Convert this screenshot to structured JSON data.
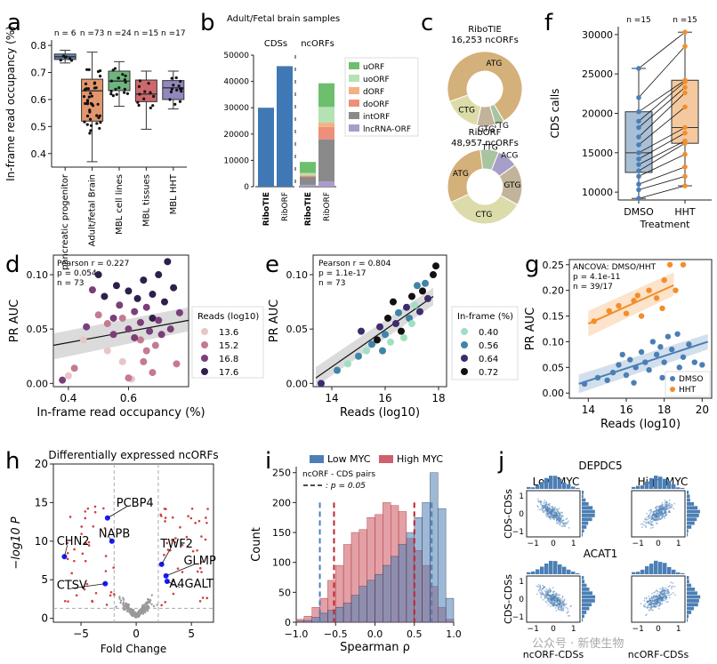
{
  "panel_labels": {
    "a": "a",
    "b": "b",
    "c": "c",
    "f": "f",
    "d": "d",
    "e": "e",
    "g": "g",
    "h": "h",
    "i": "i",
    "j": "j"
  },
  "watermark": "公众号 · 新使生物",
  "chart_data": [
    {
      "id": "a",
      "type": "box",
      "ylabel": "In-frame read occupancy (%)",
      "ylim": [
        0.35,
        0.82
      ],
      "yticks": [
        "0.4",
        "0.5",
        "0.6",
        "0.7",
        "0.8"
      ],
      "categories": [
        "pancreatic progenitor",
        "Adult/fetal Brain",
        "MBL cell lines",
        "MBL tissues",
        "MBL HHT"
      ],
      "n_labels": [
        "n = 6",
        "n =73",
        "n =24",
        "n =15",
        "n =17"
      ],
      "colors": [
        "#4c72b0",
        "#dd8452",
        "#55a868",
        "#c44e52",
        "#8172b3"
      ],
      "boxes": [
        {
          "min": 0.735,
          "q1": 0.748,
          "median": 0.758,
          "q3": 0.768,
          "max": 0.782
        },
        {
          "min": 0.37,
          "q1": 0.52,
          "median": 0.632,
          "q3": 0.675,
          "max": 0.775
        },
        {
          "min": 0.575,
          "q1": 0.633,
          "median": 0.668,
          "q3": 0.705,
          "max": 0.74
        },
        {
          "min": 0.49,
          "q1": 0.592,
          "median": 0.62,
          "q3": 0.672,
          "max": 0.705
        },
        {
          "min": 0.565,
          "q1": 0.6,
          "median": 0.643,
          "q3": 0.67,
          "max": 0.705
        }
      ]
    },
    {
      "id": "b",
      "type": "stacked-bar",
      "title": "Adult/Fetal brain samples",
      "group_labels": [
        "CDSs",
        "ncORFs"
      ],
      "ylim": [
        0,
        50000
      ],
      "yticks": [
        "0",
        "10000",
        "20000",
        "30000",
        "40000",
        "50000"
      ],
      "categories": [
        "RiboTIE",
        "RibORF",
        "RiboTIE",
        "RibORF"
      ],
      "cds_values": [
        30000,
        45800
      ],
      "legend": [
        "uORF",
        "uoORF",
        "dORF",
        "doORF",
        "intORF",
        "lncRNA-ORF"
      ],
      "legend_colors": [
        "#6dbf6d",
        "#b4e2b4",
        "#f4b183",
        "#ee8e7b",
        "#8a8a8a",
        "#a99ccd"
      ],
      "series_ncorf": [
        {
          "name": "uORF",
          "values": [
            4200,
            9000
          ]
        },
        {
          "name": "uoORF",
          "values": [
            800,
            6000
          ]
        },
        {
          "name": "dORF",
          "values": [
            300,
            1600
          ]
        },
        {
          "name": "doORF",
          "values": [
            400,
            4700
          ]
        },
        {
          "name": "intORF",
          "values": [
            3000,
            16000
          ]
        },
        {
          "name": "lncRNA-ORF",
          "values": [
            700,
            2000
          ]
        }
      ]
    },
    {
      "id": "c",
      "type": "pie",
      "charts": [
        {
          "title": "RiboTIE",
          "subtitle": "16,253 ncORFs",
          "slices": [
            {
              "label": "ATG",
              "value": 72
            },
            {
              "label": "TTG",
              "value": 4
            },
            {
              "label": "GTG",
              "value": 8
            },
            {
              "label": "CTG",
              "value": 16
            }
          ]
        },
        {
          "title": "RibORF",
          "subtitle": "48,957 ncORFs",
          "slices": [
            {
              "label": "ATG",
              "value": 30
            },
            {
              "label": "TTG",
              "value": 8
            },
            {
              "label": "ACG",
              "value": 9
            },
            {
              "label": "GTG",
              "value": 18
            },
            {
              "label": "CTG",
              "value": 35
            }
          ]
        }
      ],
      "slice_colors": {
        "ATG": "#d4b07a",
        "TTG": "#a8c4a0",
        "GTG": "#c2b49a",
        "CTG": "#dcdcaa",
        "ACG": "#a59fc9"
      }
    },
    {
      "id": "f",
      "type": "box-paired",
      "ylabel": "CDS calls",
      "xlabel": "Treatment",
      "categories": [
        "DMSO",
        "HHT"
      ],
      "n_labels": [
        "n =15",
        "n =15"
      ],
      "ylim": [
        9000,
        31000
      ],
      "yticks": [
        "10000",
        "15000",
        "20000",
        "25000",
        "30000"
      ],
      "boxes": [
        {
          "min": 9200,
          "q1": 12500,
          "median": 15000,
          "q3": 20200,
          "max": 25700
        },
        {
          "min": 10800,
          "q1": 16200,
          "median": 18200,
          "q3": 24200,
          "max": 30300
        }
      ],
      "pairs": [
        [
          25700,
          30300
        ],
        [
          22000,
          28500
        ],
        [
          20200,
          24200
        ],
        [
          19000,
          24000
        ],
        [
          18200,
          23300
        ],
        [
          17000,
          22600
        ],
        [
          16000,
          20800
        ],
        [
          15000,
          18200
        ],
        [
          14200,
          17500
        ],
        [
          13500,
          16500
        ],
        [
          12700,
          16200
        ],
        [
          12000,
          14800
        ],
        [
          11000,
          13200
        ],
        [
          10300,
          12000
        ],
        [
          9200,
          10800
        ]
      ]
    },
    {
      "id": "d",
      "type": "scatter",
      "xlabel": "In-frame read occupancy (%)",
      "ylabel": "PR AUC",
      "xlim": [
        0.35,
        0.8
      ],
      "ylim": [
        -0.003,
        0.118
      ],
      "xticks": [
        "0.4",
        "0.6"
      ],
      "yticks": [
        "0.00",
        "0.05",
        "0.10"
      ],
      "stats": [
        "Pearson r = 0.227",
        "p = 0.054",
        "n = 73"
      ],
      "legend_title": "Reads (log10)",
      "legend": [
        "13.6",
        "15.2",
        "16.8",
        "17.6"
      ],
      "legend_colors": [
        "#e8c5c8",
        "#c47a92",
        "#7a3f78",
        "#2e1f4b"
      ],
      "fit": {
        "x": [
          0.35,
          0.8
        ],
        "y": [
          0.035,
          0.058
        ]
      },
      "points": [
        [
          0.38,
          0.003,
          2
        ],
        [
          0.4,
          0.007,
          0
        ],
        [
          0.42,
          0.014,
          1
        ],
        [
          0.45,
          0.04,
          0
        ],
        [
          0.46,
          0.052,
          2
        ],
        [
          0.48,
          0.086,
          2
        ],
        [
          0.5,
          0.1,
          3
        ],
        [
          0.5,
          0.063,
          1
        ],
        [
          0.52,
          0.08,
          3
        ],
        [
          0.53,
          0.03,
          0
        ],
        [
          0.55,
          0.045,
          2
        ],
        [
          0.56,
          0.09,
          3
        ],
        [
          0.57,
          0.072,
          2
        ],
        [
          0.58,
          0.06,
          1
        ],
        [
          0.58,
          0.02,
          0
        ],
        [
          0.6,
          0.085,
          3
        ],
        [
          0.6,
          0.05,
          2
        ],
        [
          0.61,
          0.004,
          0
        ],
        [
          0.62,
          0.066,
          2
        ],
        [
          0.63,
          0.078,
          3
        ],
        [
          0.64,
          0.04,
          1
        ],
        [
          0.64,
          0.056,
          2
        ],
        [
          0.65,
          0.095,
          3
        ],
        [
          0.66,
          0.07,
          2
        ],
        [
          0.66,
          0.03,
          1
        ],
        [
          0.67,
          0.048,
          2
        ],
        [
          0.68,
          0.06,
          3
        ],
        [
          0.68,
          0.082,
          3
        ],
        [
          0.69,
          0.035,
          1
        ],
        [
          0.7,
          0.058,
          2
        ],
        [
          0.7,
          0.1,
          3
        ],
        [
          0.71,
          0.045,
          2
        ],
        [
          0.72,
          0.075,
          3
        ],
        [
          0.73,
          0.112,
          3
        ],
        [
          0.74,
          0.05,
          2
        ],
        [
          0.75,
          0.088,
          3
        ],
        [
          0.76,
          0.018,
          1
        ],
        [
          0.77,
          0.065,
          2
        ],
        [
          0.6,
          0.005,
          1
        ],
        [
          0.55,
          0.06,
          2
        ],
        [
          0.53,
          0.055,
          1
        ],
        [
          0.62,
          0.042,
          2
        ],
        [
          0.65,
          0.02,
          1
        ],
        [
          0.68,
          0.01,
          1
        ]
      ]
    },
    {
      "id": "e",
      "type": "scatter",
      "xlabel": "Reads (log10)",
      "ylabel": "PR AUC",
      "xlim": [
        13.3,
        18.3
      ],
      "ylim": [
        -0.003,
        0.118
      ],
      "xticks": [
        "14",
        "16",
        "18"
      ],
      "yticks": [
        "0.00",
        "0.05",
        "0.10"
      ],
      "stats": [
        "Pearson r = 0.804",
        "p = 1.1e-17",
        "n = 73"
      ],
      "legend_title": "In-frame (%)",
      "legend": [
        "0.40",
        "0.56",
        "0.64",
        "0.72"
      ],
      "legend_colors": [
        "#9fe0c0",
        "#3f85a8",
        "#3b2d6e",
        "#111111"
      ],
      "fit": {
        "x": [
          13.4,
          17.8
        ],
        "y": [
          0.005,
          0.08
        ]
      },
      "points": [
        [
          13.6,
          0.0,
          2
        ],
        [
          14.2,
          0.012,
          1
        ],
        [
          14.6,
          0.018,
          0
        ],
        [
          15.0,
          0.025,
          1
        ],
        [
          15.1,
          0.048,
          2
        ],
        [
          15.3,
          0.03,
          0
        ],
        [
          15.5,
          0.036,
          1
        ],
        [
          15.7,
          0.04,
          3
        ],
        [
          15.8,
          0.052,
          2
        ],
        [
          16.0,
          0.045,
          1
        ],
        [
          16.1,
          0.06,
          3
        ],
        [
          16.2,
          0.038,
          0
        ],
        [
          16.4,
          0.055,
          2
        ],
        [
          16.5,
          0.065,
          1
        ],
        [
          16.6,
          0.048,
          3
        ],
        [
          16.8,
          0.07,
          2
        ],
        [
          16.9,
          0.06,
          1
        ],
        [
          17.0,
          0.08,
          3
        ],
        [
          17.1,
          0.072,
          0
        ],
        [
          17.2,
          0.09,
          1
        ],
        [
          17.3,
          0.066,
          2
        ],
        [
          17.4,
          0.085,
          3
        ],
        [
          17.5,
          0.092,
          1
        ],
        [
          17.6,
          0.078,
          2
        ],
        [
          17.8,
          0.1,
          3
        ],
        [
          17.9,
          0.108,
          3
        ],
        [
          16.3,
          0.075,
          3
        ],
        [
          16.7,
          0.042,
          0
        ],
        [
          15.9,
          0.03,
          1
        ],
        [
          17.0,
          0.055,
          0
        ]
      ]
    },
    {
      "id": "g",
      "type": "scatter",
      "xlabel": "Reads (log10)",
      "ylabel": "PR AUC",
      "xlim": [
        13,
        20.5
      ],
      "ylim": [
        -0.01,
        0.26
      ],
      "xticks": [
        "14",
        "16",
        "18",
        "20"
      ],
      "yticks": [
        "0.00",
        "0.05",
        "0.10",
        "0.15",
        "0.20",
        "0.25"
      ],
      "stats": [
        "ANCOVA: DMSO/HHT",
        "p = 4.1e-11",
        "n = 39/17"
      ],
      "legend": [
        "DMSO",
        "HHT"
      ],
      "legend_colors": [
        "#4a7fb5",
        "#f28e2b"
      ],
      "fit_dmso": {
        "x": [
          13.5,
          20.3
        ],
        "y": [
          0.018,
          0.1
        ]
      },
      "fit_hht": {
        "x": [
          14,
          18.5
        ],
        "y": [
          0.135,
          0.21
        ]
      },
      "points_dmso": [
        [
          13.8,
          0.018
        ],
        [
          14.5,
          0.03
        ],
        [
          15,
          0.025
        ],
        [
          15.3,
          0.04
        ],
        [
          15.6,
          0.055
        ],
        [
          16,
          0.035
        ],
        [
          16.2,
          0.065
        ],
        [
          16.5,
          0.05
        ],
        [
          16.8,
          0.08
        ],
        [
          17,
          0.06
        ],
        [
          17.2,
          0.045
        ],
        [
          17.4,
          0.1
        ],
        [
          17.6,
          0.075
        ],
        [
          17.8,
          0.09
        ],
        [
          18,
          0.06
        ],
        [
          18.2,
          0.11
        ],
        [
          18.4,
          0.085
        ],
        [
          18.7,
          0.115
        ],
        [
          19,
          0.07
        ],
        [
          19.3,
          0.095
        ],
        [
          19.6,
          0.06
        ],
        [
          20,
          0.055
        ],
        [
          16.4,
          0.02
        ],
        [
          17.9,
          0.03
        ],
        [
          15.8,
          0.075
        ],
        [
          18.8,
          0.05
        ]
      ],
      "points_hht": [
        [
          14.3,
          0.14
        ],
        [
          15.1,
          0.16
        ],
        [
          15.6,
          0.17
        ],
        [
          16,
          0.155
        ],
        [
          16.4,
          0.18
        ],
        [
          16.8,
          0.15
        ],
        [
          17.2,
          0.2
        ],
        [
          17.6,
          0.185
        ],
        [
          18,
          0.22
        ],
        [
          18.3,
          0.25
        ],
        [
          18.6,
          0.2
        ],
        [
          19,
          0.25
        ],
        [
          16.6,
          0.19
        ],
        [
          17.9,
          0.165
        ]
      ]
    },
    {
      "id": "h",
      "type": "volcano",
      "title": "Differentially expressed ncORFs",
      "xlabel": "Fold Change",
      "ylabel": "−log10 P",
      "xlim": [
        -7.5,
        7
      ],
      "ylim": [
        -0.5,
        20
      ],
      "xticks": [
        "−5",
        "0",
        "5"
      ],
      "yticks": [
        "0",
        "5",
        "10",
        "15",
        "20"
      ],
      "genes": [
        "CHN2",
        "PCBP4",
        "TWF2",
        "NAPB",
        "GLMP",
        "CTSV",
        "A4GALT"
      ],
      "gene_points": [
        [
          -6.5,
          8
        ],
        [
          -2.6,
          13
        ],
        [
          2.3,
          7
        ],
        [
          -2.2,
          10
        ],
        [
          2.7,
          5.5
        ],
        [
          -2.8,
          4.5
        ],
        [
          2.8,
          4.8
        ]
      ]
    },
    {
      "id": "i",
      "type": "histogram",
      "xlabel": "Spearman ρ",
      "ylabel": "Count",
      "xlim": [
        -1,
        1
      ],
      "ylim": [
        0,
        260
      ],
      "xticks": [
        "−1.0",
        "−0.5",
        "0.0",
        "0.5",
        "1.0"
      ],
      "yticks": [
        "0",
        "50",
        "100",
        "150",
        "200",
        "250"
      ],
      "legend": [
        "Low MYC",
        "High MYC"
      ],
      "legend_colors": [
        "#4c7fb5",
        "#d0606b"
      ],
      "legend2_title": "ncORF - CDS pairs",
      "legend2_label": ": p = 0.05",
      "bins_center": [
        -0.95,
        -0.85,
        -0.75,
        -0.65,
        -0.55,
        -0.45,
        -0.35,
        -0.25,
        -0.15,
        -0.05,
        0.05,
        0.15,
        0.25,
        0.35,
        0.45,
        0.55,
        0.65,
        0.75,
        0.85,
        0.95
      ],
      "low_myc": [
        2,
        3,
        8,
        15,
        20,
        25,
        32,
        45,
        60,
        70,
        80,
        95,
        110,
        130,
        150,
        175,
        200,
        250,
        190,
        40
      ],
      "high_myc": [
        5,
        10,
        25,
        40,
        70,
        95,
        130,
        150,
        155,
        175,
        180,
        200,
        195,
        185,
        140,
        120,
        95,
        60,
        25,
        5
      ],
      "thresholds_low": [
        -0.7,
        0.72
      ],
      "thresholds_high": [
        -0.52,
        0.5
      ]
    },
    {
      "id": "j",
      "type": "scatter-grid",
      "title_top": "DEPDC5",
      "title_bottom": "ACAT1",
      "col_titles": [
        "Low MYC",
        "High MYC"
      ],
      "ylabel": "CDS-CDSs",
      "xlabel": "ncORF-CDSs",
      "xticks": [
        "−1",
        "0",
        "1"
      ],
      "yticks": [
        "−1",
        "0",
        "1"
      ],
      "correlations": [
        -0.8,
        0.75,
        -0.7,
        0.7
      ]
    }
  ]
}
